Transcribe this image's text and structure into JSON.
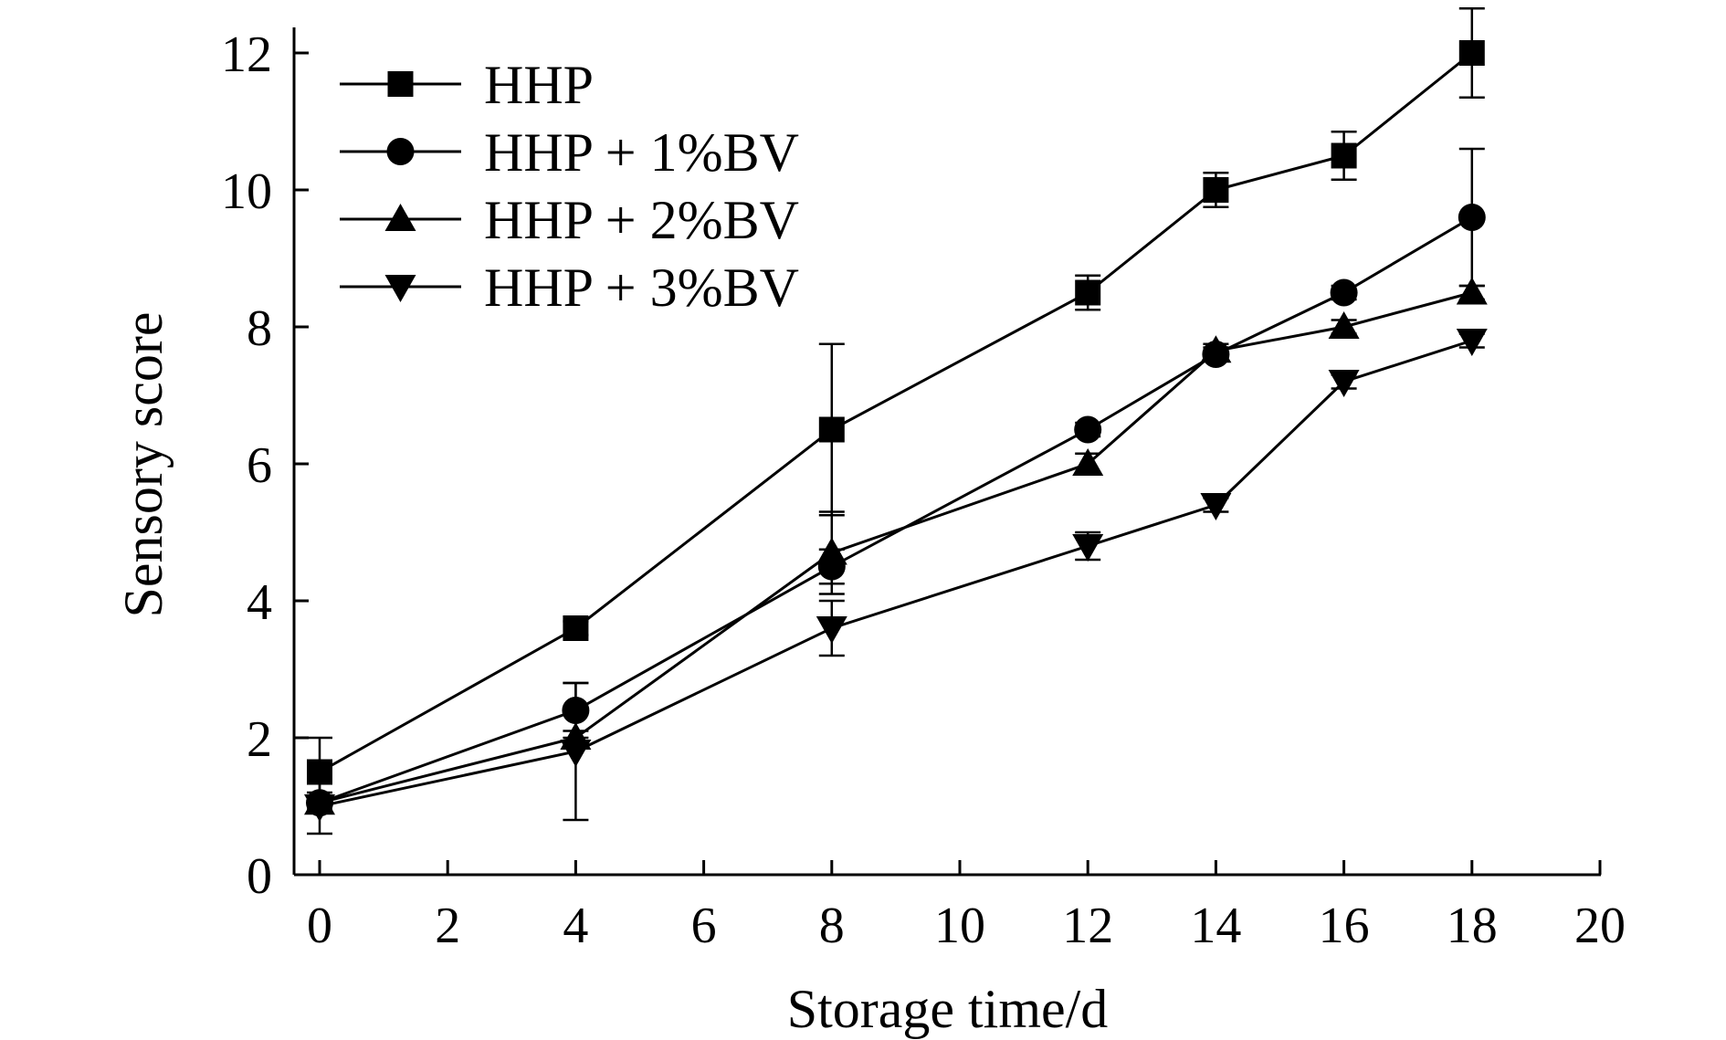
{
  "chart_data": {
    "type": "line",
    "title": "",
    "xlabel": "Storage time/d",
    "ylabel": "Sensory score",
    "xlim": [
      0,
      20
    ],
    "ylim": [
      0,
      12
    ],
    "xticks": [
      0,
      2,
      4,
      6,
      8,
      10,
      12,
      14,
      16,
      18,
      20
    ],
    "yticks": [
      0,
      2,
      4,
      6,
      8,
      10,
      12
    ],
    "x": [
      0,
      4,
      8,
      12,
      14,
      16,
      18
    ],
    "grid": false,
    "legend_position": "top-left",
    "series": [
      {
        "name": "HHP",
        "marker": "square",
        "values": [
          1.5,
          3.6,
          6.5,
          8.5,
          10.0,
          10.5,
          12.0
        ],
        "errors": [
          0.5,
          0.1,
          1.25,
          0.25,
          0.25,
          0.35,
          0.65
        ]
      },
      {
        "name": "HHP + 1%BV",
        "marker": "circle",
        "values": [
          1.05,
          2.4,
          4.5,
          6.5,
          7.6,
          8.5,
          9.6
        ],
        "errors": [
          0.15,
          0.4,
          0.25,
          0.1,
          0.1,
          0.1,
          1.0
        ]
      },
      {
        "name": "HHP + 2%BV",
        "marker": "triangle-up",
        "values": [
          1.05,
          2.0,
          4.7,
          6.0,
          7.65,
          8.0,
          8.5
        ],
        "errors": [
          0.1,
          0.1,
          0.6,
          0.15,
          0.1,
          0.1,
          0.1
        ]
      },
      {
        "name": "HHP + 3%BV",
        "marker": "triangle-down",
        "values": [
          1.0,
          1.8,
          3.6,
          4.8,
          5.4,
          7.2,
          7.8
        ],
        "errors": [
          0.4,
          1.0,
          0.4,
          0.2,
          0.1,
          0.1,
          0.1
        ]
      }
    ]
  }
}
